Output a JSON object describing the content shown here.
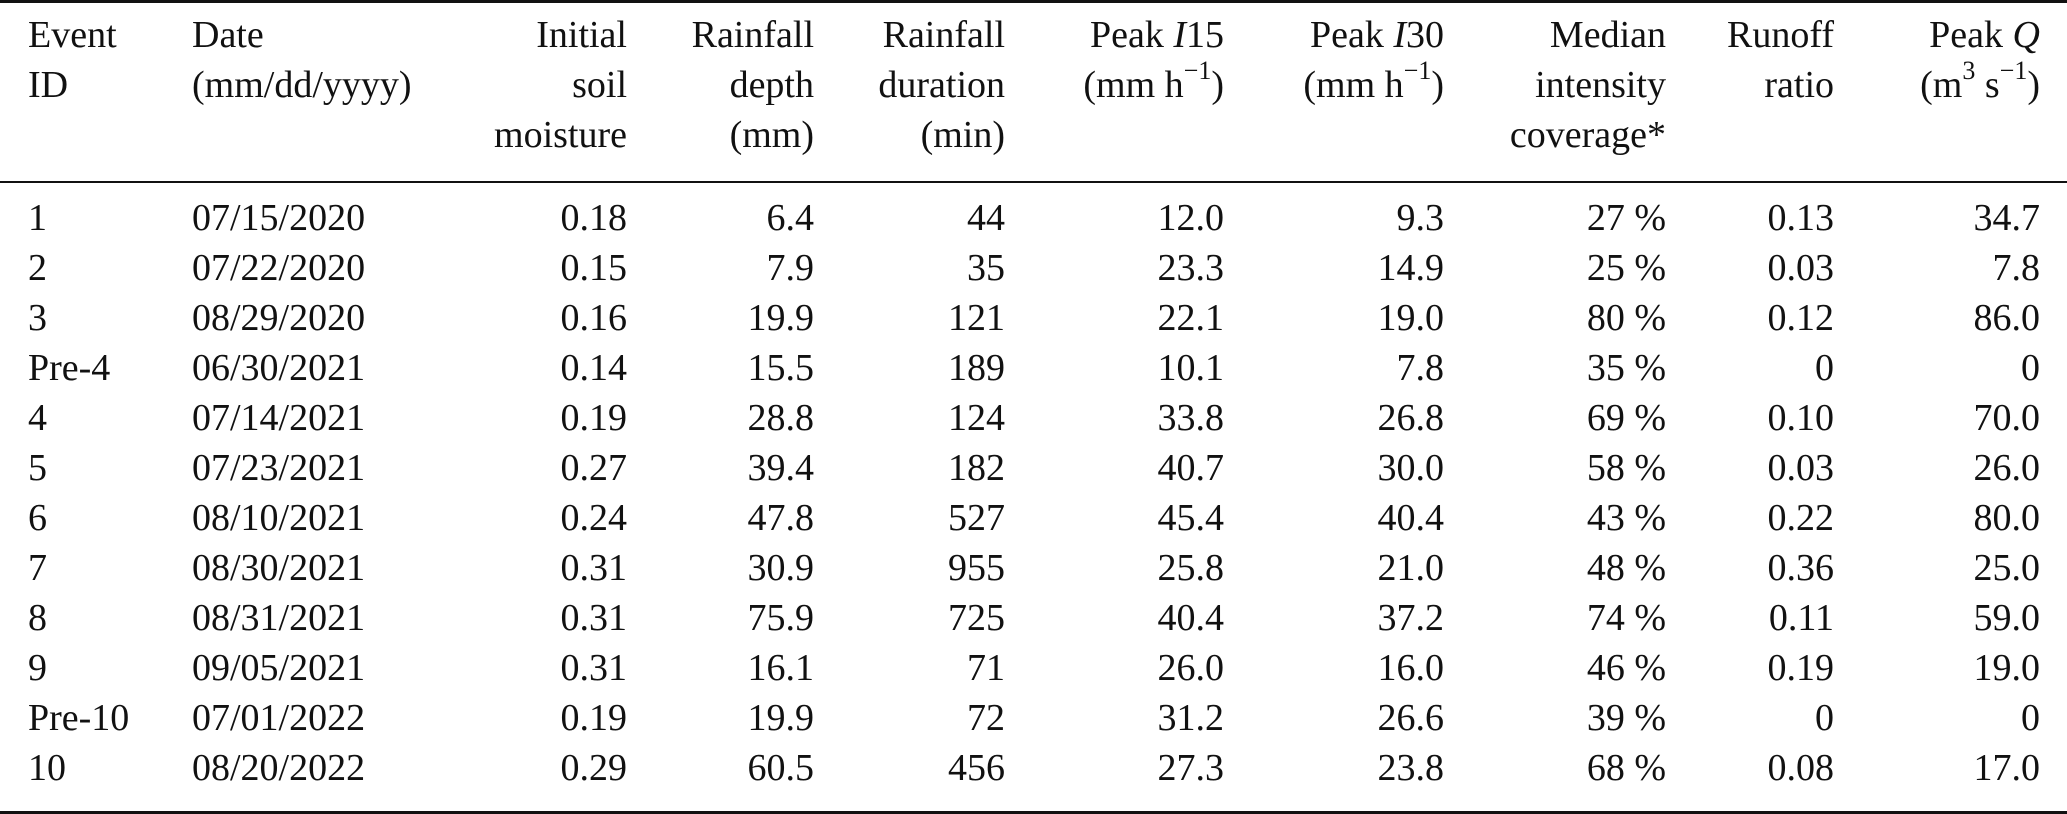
{
  "table": {
    "headers": [
      [
        "Event",
        "ID",
        ""
      ],
      [
        "Date",
        "(mm/dd/yyyy)",
        ""
      ],
      [
        "Initial",
        "soil",
        "moisture"
      ],
      [
        "Rainfall",
        "depth",
        "(mm)"
      ],
      [
        "Rainfall",
        "duration",
        "(min)"
      ],
      [
        "Peak I15",
        "(mm h−1)",
        ""
      ],
      [
        "Peak I30",
        "(mm h−1)",
        ""
      ],
      [
        "Median",
        "intensity",
        "coverage*"
      ],
      [
        "Runoff",
        "ratio",
        ""
      ],
      [
        "Peak Q",
        "(m3 s−1)",
        ""
      ]
    ],
    "header_parts": {
      "i15_prefix": "Peak ",
      "i15_var": "I",
      "i15_num": "15",
      "i30_prefix": "Peak ",
      "i30_var": "I",
      "i30_num": "30",
      "mmh_base": "(mm h",
      "mmh_exp": "−1",
      "mmh_close": ")",
      "q_prefix": "Peak ",
      "q_var": "Q",
      "m3_base": "(m",
      "m3_exp": "3",
      "m3_mid": " s",
      "m3_exp2": "−1",
      "m3_close": ")"
    },
    "rows": [
      [
        "1",
        "07/15/2020",
        "0.18",
        "6.4",
        "44",
        "12.0",
        "9.3",
        "27 %",
        "0.13",
        "34.7"
      ],
      [
        "2",
        "07/22/2020",
        "0.15",
        "7.9",
        "35",
        "23.3",
        "14.9",
        "25 %",
        "0.03",
        "7.8"
      ],
      [
        "3",
        "08/29/2020",
        "0.16",
        "19.9",
        "121",
        "22.1",
        "19.0",
        "80 %",
        "0.12",
        "86.0"
      ],
      [
        "Pre-4",
        "06/30/2021",
        "0.14",
        "15.5",
        "189",
        "10.1",
        "7.8",
        "35 %",
        "0",
        "0"
      ],
      [
        "4",
        "07/14/2021",
        "0.19",
        "28.8",
        "124",
        "33.8",
        "26.8",
        "69 %",
        "0.10",
        "70.0"
      ],
      [
        "5",
        "07/23/2021",
        "0.27",
        "39.4",
        "182",
        "40.7",
        "30.0",
        "58 %",
        "0.03",
        "26.0"
      ],
      [
        "6",
        "08/10/2021",
        "0.24",
        "47.8",
        "527",
        "45.4",
        "40.4",
        "43 %",
        "0.22",
        "80.0"
      ],
      [
        "7",
        "08/30/2021",
        "0.31",
        "30.9",
        "955",
        "25.8",
        "21.0",
        "48 %",
        "0.36",
        "25.0"
      ],
      [
        "8",
        "08/31/2021",
        "0.31",
        "75.9",
        "725",
        "40.4",
        "37.2",
        "74 %",
        "0.11",
        "59.0"
      ],
      [
        "9",
        "09/05/2021",
        "0.31",
        "16.1",
        "71",
        "26.0",
        "16.0",
        "46 %",
        "0.19",
        "19.0"
      ],
      [
        "Pre-10",
        "07/01/2022",
        "0.19",
        "19.9",
        "72",
        "31.2",
        "26.6",
        "39 %",
        "0",
        "0"
      ],
      [
        "10",
        "08/20/2022",
        "0.29",
        "60.5",
        "456",
        "27.3",
        "23.8",
        "68 %",
        "0.08",
        "17.0"
      ]
    ]
  }
}
